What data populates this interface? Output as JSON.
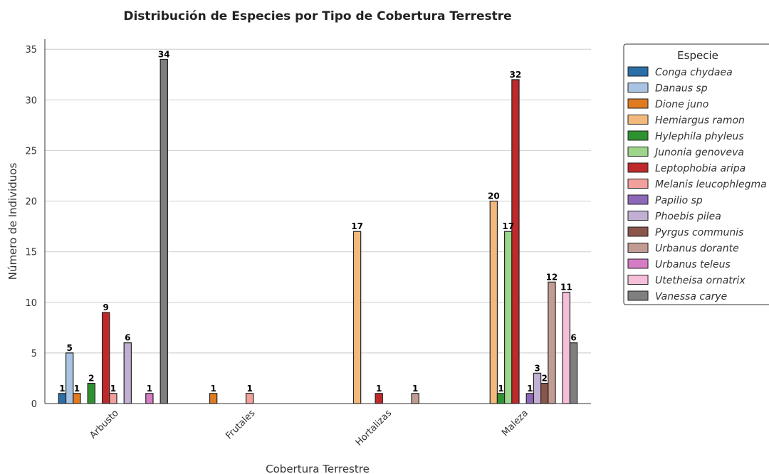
{
  "chart_data": {
    "type": "bar",
    "title": "Distribución de Especies por Tipo de Cobertura Terrestre",
    "xlabel": "Cobertura Terrestre",
    "ylabel": "Número de Individuos",
    "ylim": [
      0,
      36
    ],
    "yticks": [
      0,
      5,
      10,
      15,
      20,
      25,
      30,
      35
    ],
    "grid": "y",
    "legend_title": "Especie",
    "legend_position": "right",
    "categories": [
      "Arbusto",
      "Frutales",
      "Hortalizas",
      "Maleza"
    ],
    "series": [
      {
        "name": "Conga chydaea",
        "color": "#2a6fa8",
        "values": [
          1,
          null,
          null,
          null
        ]
      },
      {
        "name": "Danaus sp",
        "color": "#a9c3e2",
        "values": [
          5,
          null,
          null,
          null
        ]
      },
      {
        "name": "Dione juno",
        "color": "#e07b22",
        "values": [
          1,
          1,
          null,
          null
        ]
      },
      {
        "name": "Hemiargus ramon",
        "color": "#f3b97c",
        "values": [
          null,
          null,
          17,
          20
        ]
      },
      {
        "name": "Hylephila phyleus",
        "color": "#2f9231",
        "values": [
          2,
          null,
          null,
          1
        ]
      },
      {
        "name": "Junonia genoveva",
        "color": "#9dd68a",
        "values": [
          null,
          null,
          null,
          17
        ]
      },
      {
        "name": "Leptophobia aripa",
        "color": "#c0292b",
        "values": [
          9,
          null,
          1,
          32
        ]
      },
      {
        "name": "Melanis leucophlegma",
        "color": "#f2a09c",
        "values": [
          1,
          1,
          null,
          null
        ]
      },
      {
        "name": "Papilio sp",
        "color": "#8e68b8",
        "values": [
          null,
          null,
          null,
          1
        ]
      },
      {
        "name": "Phoebis pilea",
        "color": "#c1b0d3",
        "values": [
          6,
          null,
          null,
          3
        ]
      },
      {
        "name": "Pyrgus communis",
        "color": "#8a554b",
        "values": [
          null,
          null,
          null,
          2
        ]
      },
      {
        "name": "Urbanus dorante",
        "color": "#c29b93",
        "values": [
          null,
          null,
          1,
          12
        ]
      },
      {
        "name": "Urbanus teleus",
        "color": "#d67cc4",
        "values": [
          1,
          null,
          null,
          null
        ]
      },
      {
        "name": "Utetheisa ornatrix",
        "color": "#f5bfd9",
        "values": [
          null,
          null,
          null,
          11
        ]
      },
      {
        "name": "Vanessa carye",
        "color": "#7f7f7f",
        "values": [
          34,
          null,
          null,
          6
        ]
      }
    ]
  }
}
